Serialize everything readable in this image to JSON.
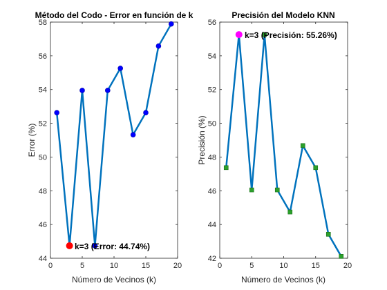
{
  "chart_data": [
    {
      "type": "line",
      "title": "Método del Codo - Error en función de k",
      "xlabel": "Número de Vecinos (k)",
      "ylabel": "Error (%)",
      "xlim": [
        0,
        20
      ],
      "ylim": [
        44,
        58
      ],
      "xticks": [
        0,
        5,
        10,
        15,
        20
      ],
      "yticks": [
        44,
        46,
        48,
        50,
        52,
        54,
        56,
        58
      ],
      "grid": false,
      "x": [
        1,
        3,
        5,
        7,
        9,
        11,
        13,
        15,
        17,
        19
      ],
      "series": [
        {
          "values": [
            52.63,
            44.74,
            53.95,
            44.74,
            53.95,
            55.26,
            51.32,
            52.63,
            56.58,
            57.89
          ],
          "color": "#0072BD",
          "marker": "circle",
          "marker_color": "#0000FF"
        }
      ],
      "highlight": {
        "x": 3,
        "y": 44.74,
        "color": "#FF0000",
        "label": "k=3 (Error: 44.74%)"
      }
    },
    {
      "type": "line",
      "title": "Precisión del Modelo KNN",
      "xlabel": "Número de Vecinos (k)",
      "ylabel": "Precisión (%)",
      "xlim": [
        0,
        20
      ],
      "ylim": [
        42,
        56
      ],
      "xticks": [
        0,
        5,
        10,
        15,
        20
      ],
      "yticks": [
        42,
        44,
        46,
        48,
        50,
        52,
        54,
        56
      ],
      "grid": false,
      "x": [
        1,
        3,
        5,
        7,
        9,
        11,
        13,
        15,
        17,
        19
      ],
      "series": [
        {
          "values": [
            47.37,
            55.26,
            46.05,
            55.26,
            46.05,
            44.74,
            48.68,
            47.37,
            43.42,
            42.11
          ],
          "color": "#0072BD",
          "marker": "square",
          "marker_color": "#2CA02C"
        }
      ],
      "highlight": {
        "x": 3,
        "y": 55.26,
        "color": "#FF00FF",
        "label": "k=3 (Precisión: 55.26%)"
      }
    }
  ]
}
